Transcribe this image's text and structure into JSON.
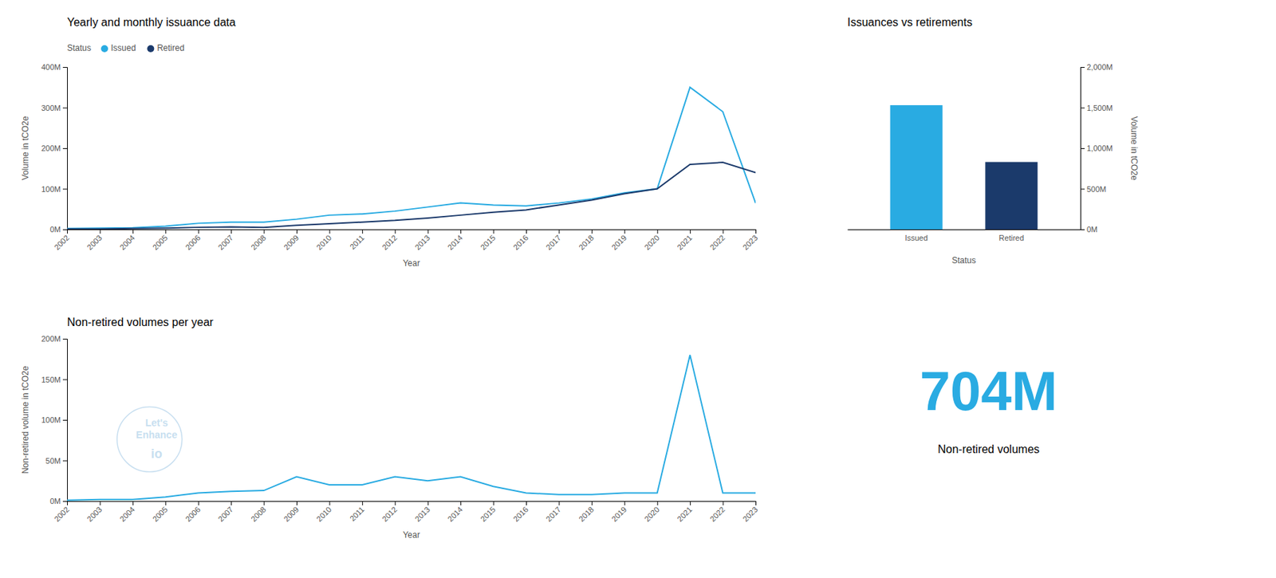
{
  "chart_data": [
    {
      "type": "line",
      "title": "Yearly and monthly issuance data",
      "x_label": "Year",
      "y_label": "Volume in tCO2e",
      "legend_title": "Status",
      "legend": "top",
      "grid": false,
      "x": [
        2002,
        2003,
        2004,
        2005,
        2006,
        2007,
        2008,
        2009,
        2010,
        2011,
        2012,
        2013,
        2014,
        2015,
        2016,
        2017,
        2018,
        2019,
        2020,
        2021,
        2022,
        2023
      ],
      "xlim": [
        2002,
        2023
      ],
      "xticks": [
        2002,
        2003,
        2004,
        2005,
        2006,
        2007,
        2008,
        2009,
        2010,
        2011,
        2012,
        2013,
        2014,
        2015,
        2016,
        2017,
        2018,
        2019,
        2020,
        2021,
        2022,
        2023
      ],
      "ylim": [
        0,
        400
      ],
      "yticks": [
        {
          "value": 0,
          "label": "0M"
        },
        {
          "value": 100,
          "label": "100M"
        },
        {
          "value": 200,
          "label": "200M"
        },
        {
          "value": 300,
          "label": "300M"
        },
        {
          "value": 400,
          "label": "400M"
        }
      ],
      "series": [
        {
          "name": "Issued",
          "color": "#29ABE2",
          "values": [
            2,
            3,
            4,
            8,
            15,
            18,
            18,
            25,
            35,
            38,
            45,
            55,
            65,
            60,
            58,
            65,
            75,
            90,
            100,
            350,
            290,
            65
          ]
        },
        {
          "name": "Retired",
          "color": "#1B3A6B",
          "values": [
            1,
            1,
            2,
            3,
            5,
            6,
            5,
            10,
            14,
            18,
            22,
            28,
            35,
            42,
            48,
            60,
            72,
            88,
            100,
            160,
            165,
            140
          ]
        }
      ]
    },
    {
      "type": "line",
      "title": "Non-retired volumes per year",
      "x_label": "Year",
      "y_label": "Non-retired volume in tCO2e",
      "annotations": [
        "Let's",
        "Enhance",
        "io"
      ],
      "grid": false,
      "x": [
        2002,
        2003,
        2004,
        2005,
        2006,
        2007,
        2008,
        2009,
        2010,
        2011,
        2012,
        2013,
        2014,
        2015,
        2016,
        2017,
        2018,
        2019,
        2020,
        2021,
        2022,
        2023
      ],
      "xlim": [
        2002,
        2023
      ],
      "xticks": [
        2002,
        2003,
        2004,
        2005,
        2006,
        2007,
        2008,
        2009,
        2010,
        2011,
        2012,
        2013,
        2014,
        2015,
        2016,
        2017,
        2018,
        2019,
        2020,
        2021,
        2022,
        2023
      ],
      "ylim": [
        0,
        200
      ],
      "yticks": [
        {
          "value": 0,
          "label": "0M"
        },
        {
          "value": 50,
          "label": "50M"
        },
        {
          "value": 100,
          "label": "100M"
        },
        {
          "value": 150,
          "label": "150M"
        },
        {
          "value": 200,
          "label": "200M"
        }
      ],
      "series": [
        {
          "color": "#29ABE2",
          "values": [
            1,
            2,
            2,
            5,
            10,
            12,
            13,
            30,
            20,
            20,
            30,
            25,
            30,
            18,
            10,
            8,
            8,
            10,
            10,
            180,
            10,
            10
          ]
        }
      ]
    },
    {
      "type": "bar",
      "title": "Issuances vs retirements",
      "x_label": "Status",
      "y_label": "Volume in tCO2e",
      "grid": false,
      "categories": [
        "Issued",
        "Retired"
      ],
      "values": [
        1530,
        830
      ],
      "colors": [
        "#29ABE2",
        "#1B3A6B"
      ],
      "ylim": [
        0,
        2000
      ],
      "yticks": [
        {
          "value": 0,
          "label": "0M"
        },
        {
          "value": 500,
          "label": "500M"
        },
        {
          "value": 1000,
          "label": "1,000M"
        },
        {
          "value": 1500,
          "label": "1,500M"
        },
        {
          "value": 2000,
          "label": "2,000M"
        }
      ]
    },
    {
      "type": "kpi",
      "title": "Non-retired volumes",
      "values": [
        704
      ],
      "value_labels": [
        "704M"
      ],
      "color": "#29ABE2",
      "data_labels": true
    }
  ]
}
